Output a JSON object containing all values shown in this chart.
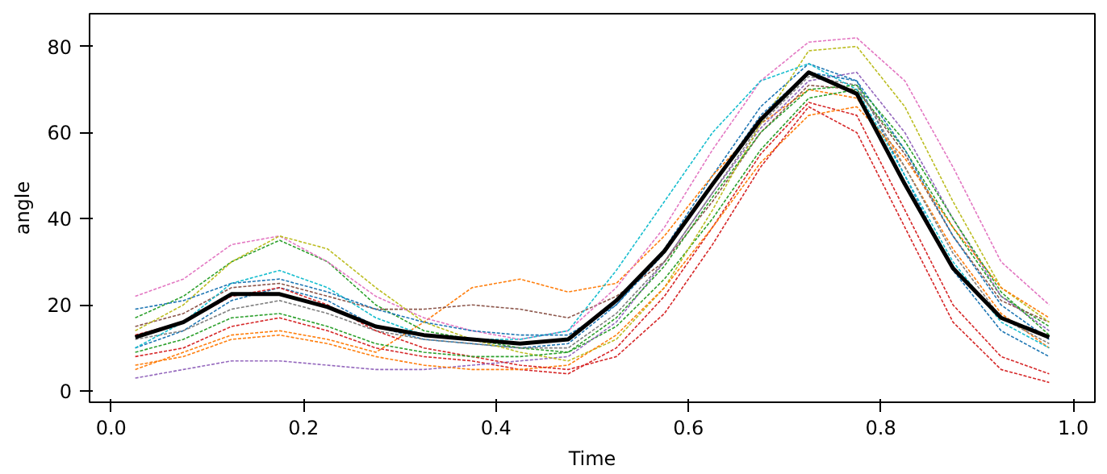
{
  "chart_data": {
    "type": "line",
    "xlabel": "Time",
    "ylabel": "angle",
    "x": [
      0.025,
      0.075,
      0.125,
      0.175,
      0.225,
      0.275,
      0.325,
      0.375,
      0.425,
      0.475,
      0.525,
      0.575,
      0.625,
      0.675,
      0.725,
      0.775,
      0.825,
      0.875,
      0.925,
      0.975
    ],
    "xlim": [
      -0.0225,
      1.0225
    ],
    "xticks": [
      {
        "value": 0,
        "label": "0.0"
      },
      0.2,
      0.4,
      0.6,
      0.8,
      {
        "value": 1,
        "label": "1.0"
      }
    ],
    "ylim": [
      -2.6,
      87.6
    ],
    "yticks": [
      0,
      20,
      40,
      60,
      80
    ],
    "grid": false,
    "series": [
      {
        "color": "#1f77b4",
        "line_style": "dashed",
        "values": [
          10,
          14,
          21,
          24,
          21,
          15,
          12,
          11,
          10,
          11,
          20,
          33,
          50,
          66,
          76,
          72,
          50,
          28,
          14,
          8
        ]
      },
      {
        "color": "#ff7f0e",
        "line_style": "dashed",
        "values": [
          5,
          9,
          13,
          14,
          12,
          9,
          16,
          24,
          26,
          23,
          25,
          36,
          50,
          62,
          70,
          68,
          52,
          33,
          18,
          10
        ]
      },
      {
        "color": "#2ca02c",
        "line_style": "dashed",
        "values": [
          17,
          22,
          30,
          35,
          30,
          20,
          14,
          12,
          10,
          9,
          15,
          26,
          40,
          56,
          68,
          70,
          56,
          38,
          22,
          15
        ]
      },
      {
        "color": "#d62728",
        "line_style": "dashed",
        "values": [
          8,
          10,
          15,
          17,
          14,
          10,
          8,
          7,
          5,
          4,
          10,
          22,
          38,
          55,
          67,
          64,
          42,
          20,
          8,
          4
        ]
      },
      {
        "color": "#9467bd",
        "line_style": "dashed",
        "values": [
          3,
          5,
          7,
          7,
          6,
          5,
          5,
          6,
          7,
          8,
          16,
          30,
          46,
          61,
          72,
          74,
          60,
          40,
          22,
          14
        ]
      },
      {
        "color": "#8c564b",
        "line_style": "dashed",
        "values": [
          15,
          18,
          24,
          25,
          22,
          19,
          19,
          20,
          19,
          17,
          22,
          30,
          44,
          60,
          71,
          70,
          55,
          36,
          21,
          16
        ]
      },
      {
        "color": "#e377c2",
        "line_style": "dashed",
        "values": [
          22,
          26,
          34,
          36,
          30,
          22,
          17,
          14,
          12,
          14,
          24,
          38,
          56,
          72,
          81,
          82,
          72,
          52,
          30,
          20
        ]
      },
      {
        "color": "#7f7f7f",
        "line_style": "dashed",
        "values": [
          12,
          14,
          19,
          21,
          18,
          14,
          12,
          11,
          10,
          10,
          18,
          30,
          46,
          62,
          73,
          71,
          52,
          32,
          17,
          11
        ]
      },
      {
        "color": "#bcbd22",
        "line_style": "dashed",
        "values": [
          14,
          20,
          30,
          36,
          33,
          24,
          16,
          12,
          9,
          7,
          12,
          24,
          42,
          62,
          79,
          80,
          66,
          44,
          24,
          16
        ]
      },
      {
        "color": "#17becf",
        "line_style": "dashed",
        "values": [
          10,
          16,
          25,
          28,
          24,
          17,
          13,
          12,
          12,
          14,
          28,
          44,
          60,
          72,
          76,
          70,
          50,
          30,
          16,
          10
        ]
      },
      {
        "color": "#1f77b4",
        "line_style": "dashed",
        "values": [
          19,
          21,
          25,
          26,
          23,
          19,
          16,
          14,
          13,
          13,
          20,
          32,
          48,
          64,
          74,
          72,
          56,
          36,
          20,
          12
        ]
      },
      {
        "color": "#ff7f0e",
        "line_style": "dashed",
        "values": [
          6,
          8,
          12,
          13,
          11,
          8,
          6,
          5,
          5,
          6,
          13,
          24,
          38,
          53,
          64,
          66,
          54,
          38,
          24,
          17
        ]
      },
      {
        "color": "#d62728",
        "line_style": "dashed",
        "values": [
          13,
          16,
          22,
          24,
          20,
          14,
          10,
          8,
          6,
          5,
          8,
          18,
          34,
          52,
          66,
          60,
          38,
          16,
          5,
          2
        ]
      },
      {
        "color": "#2ca02c",
        "line_style": "dashed",
        "values": [
          9,
          12,
          17,
          18,
          15,
          11,
          9,
          8,
          8,
          9,
          17,
          29,
          45,
          60,
          70,
          71,
          58,
          40,
          23,
          13
        ]
      },
      {
        "color": "#000000",
        "line_style": "solid",
        "values": [
          12.5,
          16,
          22.5,
          22.5,
          19.5,
          15,
          13,
          12,
          11,
          12,
          21,
          32.5,
          48,
          63,
          74,
          69,
          48,
          28.5,
          17,
          12.5
        ]
      }
    ]
  }
}
